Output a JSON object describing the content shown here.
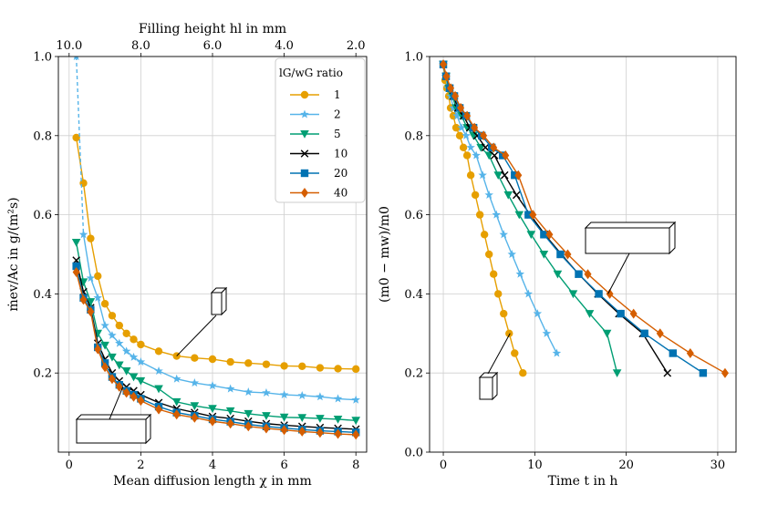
{
  "chart_data": [
    {
      "type": "line",
      "panel": "left",
      "xlabel": "Mean diffusion length χ in mm",
      "ylabel": "ṁev/Ac in g/(m²s)",
      "secondary_xlabel": "Filling height hl in mm",
      "xlim": [
        -0.3,
        8.3
      ],
      "ylim": [
        0.0,
        1.0
      ],
      "xticks": [
        "0",
        "2",
        "4",
        "6",
        "8"
      ],
      "yticks": [
        "0.2",
        "0.4",
        "0.6",
        "0.8",
        "1.0"
      ],
      "secondary_xticks": [
        "10.0",
        "8.0",
        "6.0",
        "4.0",
        "2.0"
      ],
      "grid": true,
      "legend_title": "lG/wG ratio",
      "legend_position": "top-right",
      "series": [
        {
          "name": "1",
          "color": "#E69F00",
          "marker": "circle",
          "x": [
            0.2,
            0.4,
            0.6,
            0.8,
            1.0,
            1.2,
            1.4,
            1.6,
            1.8,
            2.0,
            2.5,
            3.0,
            3.5,
            4.0,
            4.5,
            5.0,
            5.5,
            6.0,
            6.5,
            7.0,
            7.5,
            8.0
          ],
          "y": [
            0.795,
            0.68,
            0.54,
            0.445,
            0.375,
            0.345,
            0.32,
            0.3,
            0.285,
            0.272,
            0.255,
            0.243,
            0.238,
            0.235,
            0.228,
            0.225,
            0.222,
            0.218,
            0.217,
            0.213,
            0.211,
            0.21
          ]
        },
        {
          "name": "2",
          "color": "#56B4E9",
          "marker": "star",
          "x": [
            0.2,
            0.4,
            0.6,
            0.8,
            1.0,
            1.2,
            1.4,
            1.6,
            1.8,
            2.0,
            2.5,
            3.0,
            3.5,
            4.0,
            4.5,
            5.0,
            5.5,
            6.0,
            6.5,
            7.0,
            7.5,
            8.0
          ],
          "y": [
            1.0,
            0.55,
            0.44,
            0.39,
            0.32,
            0.295,
            0.275,
            0.255,
            0.24,
            0.228,
            0.205,
            0.185,
            0.175,
            0.168,
            0.16,
            0.152,
            0.15,
            0.145,
            0.143,
            0.14,
            0.135,
            0.132
          ]
        },
        {
          "name": "5",
          "color": "#009E73",
          "marker": "triangle-down",
          "x": [
            0.2,
            0.4,
            0.6,
            0.8,
            1.0,
            1.2,
            1.4,
            1.6,
            1.8,
            2.0,
            2.5,
            3.0,
            3.5,
            4.0,
            4.5,
            5.0,
            5.5,
            6.0,
            6.5,
            7.0,
            7.5,
            8.0
          ],
          "y": [
            0.53,
            0.43,
            0.38,
            0.3,
            0.27,
            0.24,
            0.22,
            0.205,
            0.19,
            0.18,
            0.16,
            0.127,
            0.117,
            0.11,
            0.104,
            0.097,
            0.092,
            0.088,
            0.087,
            0.085,
            0.083,
            0.08
          ]
        },
        {
          "name": "10",
          "color": "#000000",
          "marker": "x",
          "x": [
            0.2,
            0.4,
            0.6,
            0.8,
            1.0,
            1.2,
            1.4,
            1.6,
            1.8,
            2.0,
            2.5,
            3.0,
            3.5,
            4.0,
            4.5,
            5.0,
            5.5,
            6.0,
            6.5,
            7.0,
            7.5,
            8.0
          ],
          "y": [
            0.485,
            0.405,
            0.365,
            0.275,
            0.235,
            0.2,
            0.18,
            0.165,
            0.155,
            0.145,
            0.125,
            0.11,
            0.1,
            0.09,
            0.085,
            0.078,
            0.072,
            0.068,
            0.065,
            0.062,
            0.06,
            0.058
          ]
        },
        {
          "name": "20",
          "color": "#0072B2",
          "marker": "square",
          "x": [
            0.2,
            0.4,
            0.6,
            0.8,
            1.0,
            1.2,
            1.4,
            1.6,
            1.8,
            2.0,
            2.5,
            3.0,
            3.5,
            4.0,
            4.5,
            5.0,
            5.5,
            6.0,
            6.5,
            7.0,
            7.5,
            8.0
          ],
          "y": [
            0.47,
            0.39,
            0.36,
            0.265,
            0.225,
            0.19,
            0.17,
            0.155,
            0.145,
            0.135,
            0.115,
            0.1,
            0.092,
            0.083,
            0.077,
            0.07,
            0.065,
            0.061,
            0.057,
            0.054,
            0.052,
            0.05
          ]
        },
        {
          "name": "40",
          "color": "#D55E00",
          "marker": "diamond",
          "x": [
            0.2,
            0.4,
            0.6,
            0.8,
            1.0,
            1.2,
            1.4,
            1.6,
            1.8,
            2.0,
            2.5,
            3.0,
            3.5,
            4.0,
            4.5,
            5.0,
            5.5,
            6.0,
            6.5,
            7.0,
            7.5,
            8.0
          ],
          "y": [
            0.455,
            0.385,
            0.355,
            0.26,
            0.215,
            0.185,
            0.165,
            0.15,
            0.14,
            0.13,
            0.108,
            0.095,
            0.087,
            0.078,
            0.072,
            0.065,
            0.06,
            0.056,
            0.052,
            0.049,
            0.046,
            0.044
          ]
        }
      ],
      "annotations": [
        {
          "box": "tall",
          "arrow_to": [
            3.0,
            0.243
          ]
        },
        {
          "box": "wide",
          "arrow_to": [
            1.5,
            0.165
          ]
        }
      ]
    },
    {
      "type": "line",
      "panel": "right",
      "xlabel": "Time t in h",
      "ylabel": "(m0 − mw)/m0",
      "xlim": [
        -1.5,
        32.0
      ],
      "ylim": [
        0.0,
        1.0
      ],
      "xticks": [
        "0",
        "10",
        "20",
        "30"
      ],
      "yticks": [
        "0.0",
        "0.2",
        "0.4",
        "0.6",
        "0.8",
        "1.0"
      ],
      "grid": true,
      "series": [
        {
          "name": "1",
          "color": "#E69F00",
          "marker": "circle",
          "x": [
            0.0,
            0.2,
            0.4,
            0.6,
            0.8,
            1.1,
            1.4,
            1.8,
            2.2,
            2.6,
            3.0,
            3.5,
            4.0,
            4.5,
            5.0,
            5.5,
            6.0,
            6.6,
            7.2,
            7.8,
            8.7
          ],
          "y": [
            0.98,
            0.94,
            0.92,
            0.9,
            0.87,
            0.85,
            0.82,
            0.8,
            0.77,
            0.75,
            0.7,
            0.65,
            0.6,
            0.55,
            0.5,
            0.45,
            0.4,
            0.35,
            0.3,
            0.25,
            0.2
          ]
        },
        {
          "name": "2",
          "color": "#56B4E9",
          "marker": "star",
          "x": [
            0.0,
            0.25,
            0.5,
            0.8,
            1.1,
            1.5,
            2.0,
            2.5,
            3.0,
            3.6,
            4.3,
            5.0,
            5.8,
            6.6,
            7.5,
            8.4,
            9.3,
            10.3,
            11.3,
            12.4
          ],
          "y": [
            0.98,
            0.95,
            0.92,
            0.9,
            0.87,
            0.85,
            0.82,
            0.8,
            0.77,
            0.75,
            0.7,
            0.65,
            0.6,
            0.55,
            0.5,
            0.45,
            0.4,
            0.35,
            0.3,
            0.25
          ]
        },
        {
          "name": "5",
          "color": "#009E73",
          "marker": "triangle-down",
          "x": [
            0.0,
            0.3,
            0.6,
            1.0,
            1.4,
            2.0,
            2.6,
            3.3,
            4.1,
            5.0,
            6.0,
            7.1,
            8.3,
            9.6,
            11.0,
            12.5,
            14.2,
            16.0,
            17.9,
            19.0
          ],
          "y": [
            0.98,
            0.95,
            0.92,
            0.9,
            0.87,
            0.85,
            0.82,
            0.8,
            0.77,
            0.75,
            0.7,
            0.65,
            0.6,
            0.55,
            0.5,
            0.45,
            0.4,
            0.35,
            0.3,
            0.2
          ]
        },
        {
          "name": "10",
          "color": "#000000",
          "marker": "x",
          "x": [
            0.0,
            0.3,
            0.7,
            1.1,
            1.6,
            2.2,
            2.9,
            3.7,
            4.6,
            5.6,
            6.7,
            8.0,
            9.5,
            11.1,
            12.9,
            14.8,
            16.9,
            19.2,
            21.8,
            24.5
          ],
          "y": [
            0.98,
            0.95,
            0.92,
            0.9,
            0.87,
            0.85,
            0.82,
            0.8,
            0.77,
            0.75,
            0.7,
            0.65,
            0.6,
            0.55,
            0.5,
            0.45,
            0.4,
            0.35,
            0.3,
            0.2
          ]
        },
        {
          "name": "20",
          "color": "#0072B2",
          "marker": "square",
          "x": [
            0.0,
            0.3,
            0.7,
            1.2,
            1.8,
            2.5,
            3.3,
            4.2,
            5.3,
            6.5,
            7.8,
            9.3,
            11.0,
            12.8,
            14.8,
            17.0,
            19.4,
            22.0,
            25.1,
            28.4
          ],
          "y": [
            0.98,
            0.95,
            0.92,
            0.9,
            0.87,
            0.85,
            0.82,
            0.8,
            0.77,
            0.75,
            0.7,
            0.6,
            0.55,
            0.5,
            0.45,
            0.4,
            0.35,
            0.3,
            0.25,
            0.2
          ]
        },
        {
          "name": "40",
          "color": "#D55E00",
          "marker": "diamond",
          "x": [
            0.0,
            0.35,
            0.8,
            1.3,
            1.9,
            2.6,
            3.4,
            4.4,
            5.5,
            6.8,
            8.2,
            9.8,
            11.6,
            13.6,
            15.8,
            18.2,
            20.8,
            23.7,
            27.0,
            30.8
          ],
          "y": [
            0.98,
            0.95,
            0.92,
            0.9,
            0.87,
            0.85,
            0.82,
            0.8,
            0.77,
            0.75,
            0.7,
            0.6,
            0.55,
            0.5,
            0.45,
            0.4,
            0.35,
            0.3,
            0.25,
            0.2
          ]
        }
      ],
      "annotations": [
        {
          "box": "wide",
          "arrow_to": [
            18.0,
            0.4
          ]
        },
        {
          "box": "small",
          "arrow_to": [
            7.3,
            0.3
          ]
        }
      ]
    }
  ]
}
